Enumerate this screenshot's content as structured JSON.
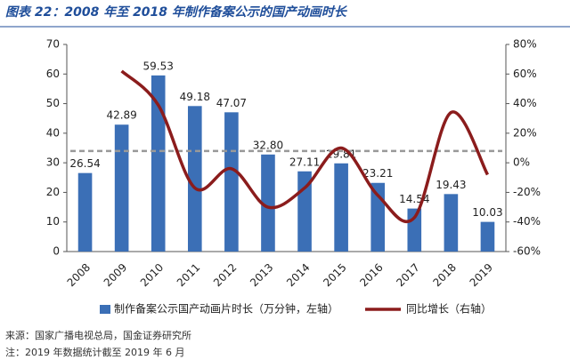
{
  "chart_data": {
    "type": "bar-line",
    "title": "图表 22：2008 年至 2018 年制作备案公示的国产动画时长",
    "categories": [
      "2008",
      "2009",
      "2010",
      "2011",
      "2012",
      "2013",
      "2014",
      "2015",
      "2016",
      "2017",
      "2018",
      "2019"
    ],
    "series": [
      {
        "name": "制作备案公示国产动画片时长（万分钟，左轴）",
        "type": "bar",
        "color": "#3b6fb6",
        "axis": "y",
        "values": [
          26.54,
          42.89,
          59.53,
          49.18,
          47.07,
          32.8,
          27.11,
          29.81,
          23.21,
          14.54,
          19.43,
          10.03
        ],
        "value_labels": [
          "26.54",
          "42.89",
          "59.53",
          "49.18",
          "47.07",
          "32.80",
          "27.11",
          "29.81",
          "23.21",
          "14.54",
          "19.43",
          "10.03"
        ]
      },
      {
        "name": "同比增长（右轴）",
        "type": "line",
        "color": "#8b1c1c",
        "axis": "y2",
        "values": [
          null,
          62,
          39,
          -17,
          -4,
          -30,
          -17,
          10,
          -22,
          -37,
          34,
          -8
        ]
      }
    ],
    "reference_line": {
      "value": 34,
      "axis": "y",
      "color": "#999999"
    },
    "ylim": [
      0,
      70
    ],
    "yticks": [
      0,
      10,
      20,
      30,
      40,
      50,
      60,
      70
    ],
    "y2lim": [
      -60,
      80
    ],
    "y2ticks": [
      {
        "value": -60,
        "label": "-60%"
      },
      {
        "value": -40,
        "label": "-40%"
      },
      {
        "value": -20,
        "label": "-20%"
      },
      {
        "value": 0,
        "label": "0%"
      },
      {
        "value": 20,
        "label": "20%"
      },
      {
        "value": 40,
        "label": "40%"
      },
      {
        "value": 60,
        "label": "60%"
      },
      {
        "value": 80,
        "label": "80%"
      }
    ],
    "notes": [
      "来源：国家广播电视总局，国金证券研究所",
      "注：2019 年数据统计截至 2019 年 6 月"
    ]
  }
}
